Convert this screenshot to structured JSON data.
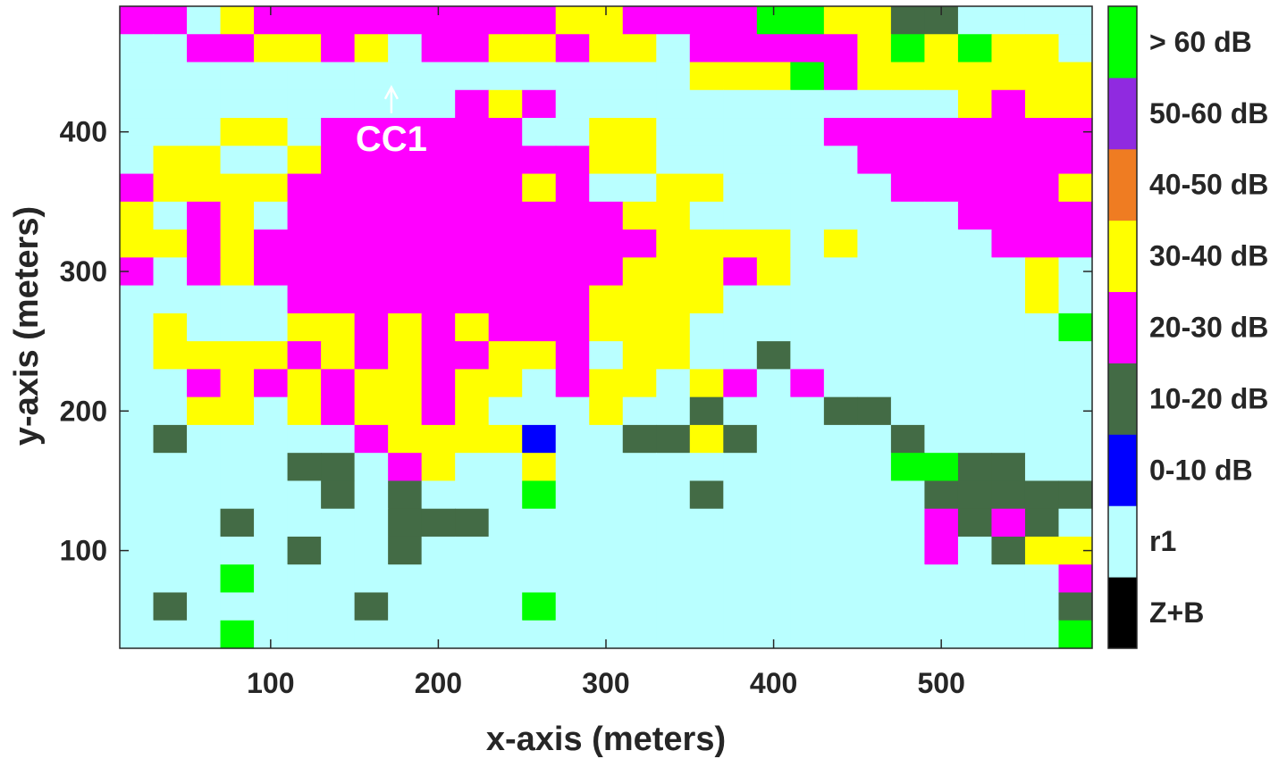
{
  "chart_data": {
    "type": "heatmap",
    "xlabel": "x-axis (meters)",
    "ylabel": "y-axis (meters)",
    "xlim": [
      10,
      590
    ],
    "ylim": [
      30,
      490
    ],
    "x_ticks": [
      100,
      200,
      300,
      400,
      500
    ],
    "y_ticks": [
      100,
      200,
      300,
      400
    ],
    "cell_size_m": 20,
    "grid": "off",
    "colorbar": {
      "placement": "right",
      "categories": [
        {
          "code": "0",
          "label": "Z+B",
          "color": "#000000"
        },
        {
          "code": "1",
          "label": "r1",
          "color": "#b9ffff"
        },
        {
          "code": "2",
          "label": "0-10 dB",
          "color": "#0000ff"
        },
        {
          "code": "3",
          "label": "10-20 dB",
          "color": "#436b45"
        },
        {
          "code": "4",
          "label": "20-30 dB",
          "color": "#ff00ff"
        },
        {
          "code": "5",
          "label": "30-40 dB",
          "color": "#ffff00"
        },
        {
          "code": "6",
          "label": "40-50 dB",
          "color": "#ef7c22"
        },
        {
          "code": "7",
          "label": "50-60 dB",
          "color": "#902ae0"
        },
        {
          "code": "8",
          "label": "> 60 dB",
          "color": "#00ff00"
        }
      ]
    },
    "row_y_centers": [
      480,
      460,
      440,
      420,
      400,
      380,
      360,
      340,
      320,
      300,
      280,
      260,
      240,
      220,
      200,
      180,
      160,
      140,
      120,
      100,
      80,
      60,
      40
    ],
    "col_x_centers": [
      20,
      40,
      60,
      80,
      100,
      120,
      140,
      160,
      180,
      200,
      220,
      240,
      260,
      280,
      300,
      320,
      340,
      360,
      380,
      400,
      420,
      440,
      460,
      480,
      500,
      520,
      540,
      560,
      580
    ],
    "rows": [
      "44154444444445544448855331111",
      "11445545144554551444445858551",
      "11111111111111111555845555555",
      "11111111114541111111111115455",
      "11155144444411551111144444444",
      "15511544444444551111114444444",
      "45555444444454115511111444445",
      "51451444444444455111111114444",
      "55454444444444445555151111444",
      "41454444444444455545111111151",
      "11111444444444555511111111151",
      "15111554545444555111111111118",
      "15555454544554155113111111111",
      "11454545545514551541411111111",
      "11551545545111511311133111111",
      "13111114555521133531111311111",
      "11111331451151111111111883311",
      "11111131311181111311111133333",
      "11131111333111111111111143431",
      "11111311311111111111111141355",
      "11181111111111111111111111114",
      "13111113111181111111111111113",
      "11181111111111111111111111118"
    ],
    "annotations": [
      {
        "text": "CC1",
        "x": 172,
        "y": 430,
        "arrow": "up"
      }
    ]
  }
}
